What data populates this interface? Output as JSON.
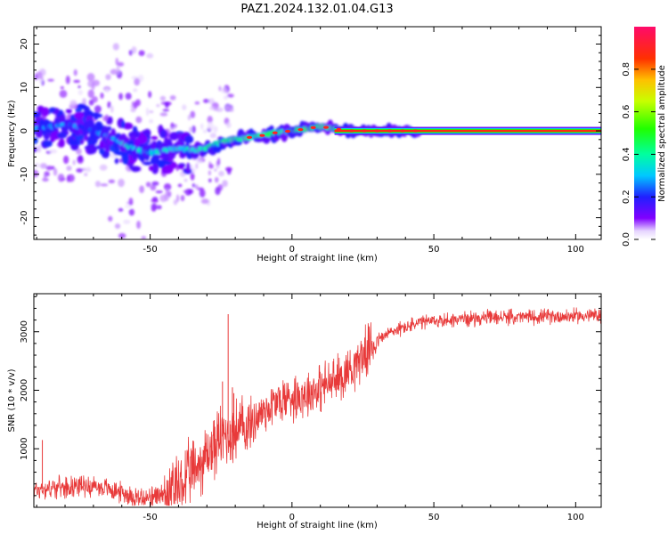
{
  "title": "PAZ1.2024.132.01.04.G13",
  "chart_data": [
    {
      "type": "heatmap",
      "xlabel": "Height of straight line (km)",
      "ylabel": "Frequency (Hz)",
      "xlim": [
        -91,
        109
      ],
      "ylim": [
        -25,
        24
      ],
      "x_ticks": [
        -50,
        0,
        50,
        100
      ],
      "x_tick_labels": [
        "-50",
        "0",
        "50",
        "100"
      ],
      "y_ticks": [
        -20,
        -10,
        0,
        10,
        20
      ],
      "y_tick_labels": [
        "-20",
        "-10",
        "0",
        "10",
        "20"
      ],
      "grid": false,
      "colorbar": {
        "label": "Normalized spectral amplitude",
        "range": [
          0,
          1
        ],
        "ticks": [
          0.0,
          0.2,
          0.4,
          0.6,
          0.8
        ],
        "tick_labels": [
          "0.0",
          "0.2",
          "0.4",
          "0.6",
          "0.8"
        ],
        "colormap": "gist_rainbow_r"
      },
      "ridge": {
        "x": [
          -90,
          -80,
          -75,
          -70,
          -66,
          -62,
          -58,
          -54,
          -50,
          -45,
          -40,
          -35,
          -30,
          -25,
          -20,
          -15,
          -10,
          -5,
          0,
          5,
          10,
          15,
          20,
          30,
          40,
          50,
          70,
          90,
          108
        ],
        "freq": [
          0.5,
          1.5,
          1.0,
          0.0,
          -1.0,
          -2.0,
          -3.5,
          -4.5,
          -5.0,
          -4.5,
          -4.0,
          -4.5,
          -4.0,
          -2.5,
          -2.0,
          -1.5,
          -1.0,
          -0.3,
          0.0,
          0.5,
          1.0,
          0.5,
          0.0,
          0.0,
          0.0,
          0.0,
          0.0,
          0.0,
          0.0
        ]
      }
    },
    {
      "type": "line",
      "xlabel": "Height of straight line (km)",
      "ylabel": "SNR (10 * v/v)",
      "xlim": [
        -91,
        109
      ],
      "ylim": [
        0,
        3650
      ],
      "x_ticks": [
        -50,
        0,
        50,
        100
      ],
      "x_tick_labels": [
        "-50",
        "0",
        "50",
        "100"
      ],
      "y_ticks": [
        1000,
        2000,
        3000
      ],
      "y_tick_labels": [
        "1000",
        "2000",
        "3000"
      ],
      "grid": false,
      "series": [
        {
          "color": "#e83a3a",
          "x": [
            -91,
            -85,
            -80,
            -75,
            -70,
            -65,
            -60,
            -55,
            -50,
            -45,
            -40,
            -35,
            -30,
            -25,
            -20,
            -15,
            -10,
            -5,
            0,
            5,
            10,
            15,
            20,
            25,
            30,
            35,
            40,
            45,
            50,
            55,
            60,
            70,
            80,
            90,
            100,
            109
          ],
          "values": [
            300,
            330,
            350,
            380,
            360,
            320,
            250,
            180,
            150,
            220,
            350,
            600,
            900,
            1200,
            1300,
            1400,
            1650,
            1800,
            1900,
            1950,
            2050,
            2150,
            2350,
            2600,
            2850,
            3000,
            3080,
            3150,
            3180,
            3200,
            3220,
            3240,
            3250,
            3260,
            3270,
            3280
          ],
          "spikes": [
            {
              "x": -22.5,
              "value": 3300
            },
            {
              "x": -21.0,
              "value": 2050
            },
            {
              "x": -20.5,
              "value": 1950
            },
            {
              "x": -24.5,
              "value": 2150
            },
            {
              "x": -88.0,
              "value": 1150
            }
          ]
        }
      ]
    }
  ]
}
